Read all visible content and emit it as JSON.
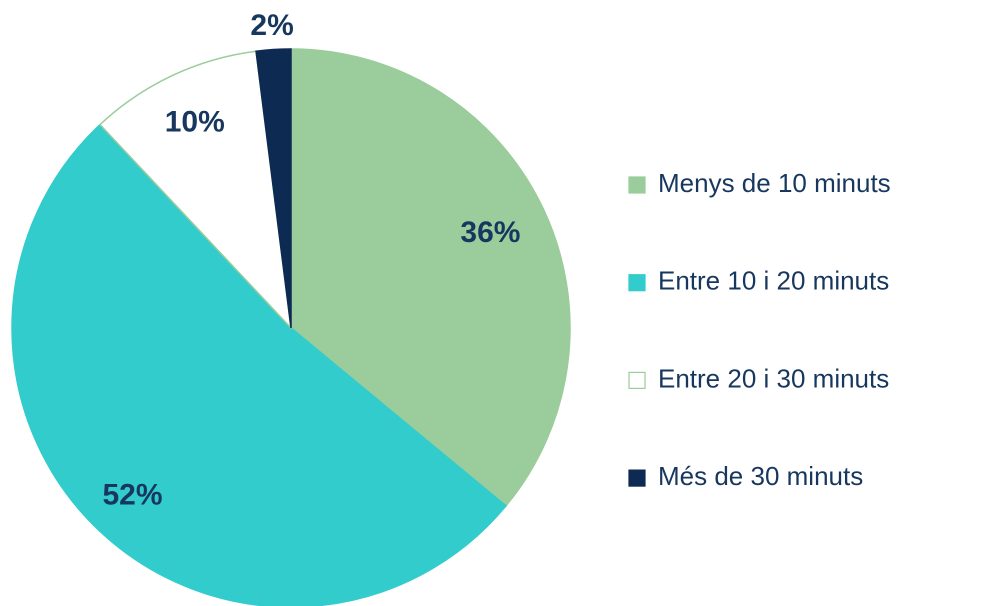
{
  "chart_data": {
    "type": "pie",
    "categories": [
      "Menys de 10 minuts",
      "Entre 10 i 20 minuts",
      "Entre 20 i 30 minuts",
      "Més de 30 minuts"
    ],
    "values": [
      36,
      52,
      10,
      2
    ],
    "value_labels": [
      "36%",
      "52%",
      "10%",
      "2%"
    ],
    "colors": [
      "#9bcc9b",
      "#33cccc",
      "#ffffff",
      "#0d2a52"
    ],
    "legend": "right"
  }
}
